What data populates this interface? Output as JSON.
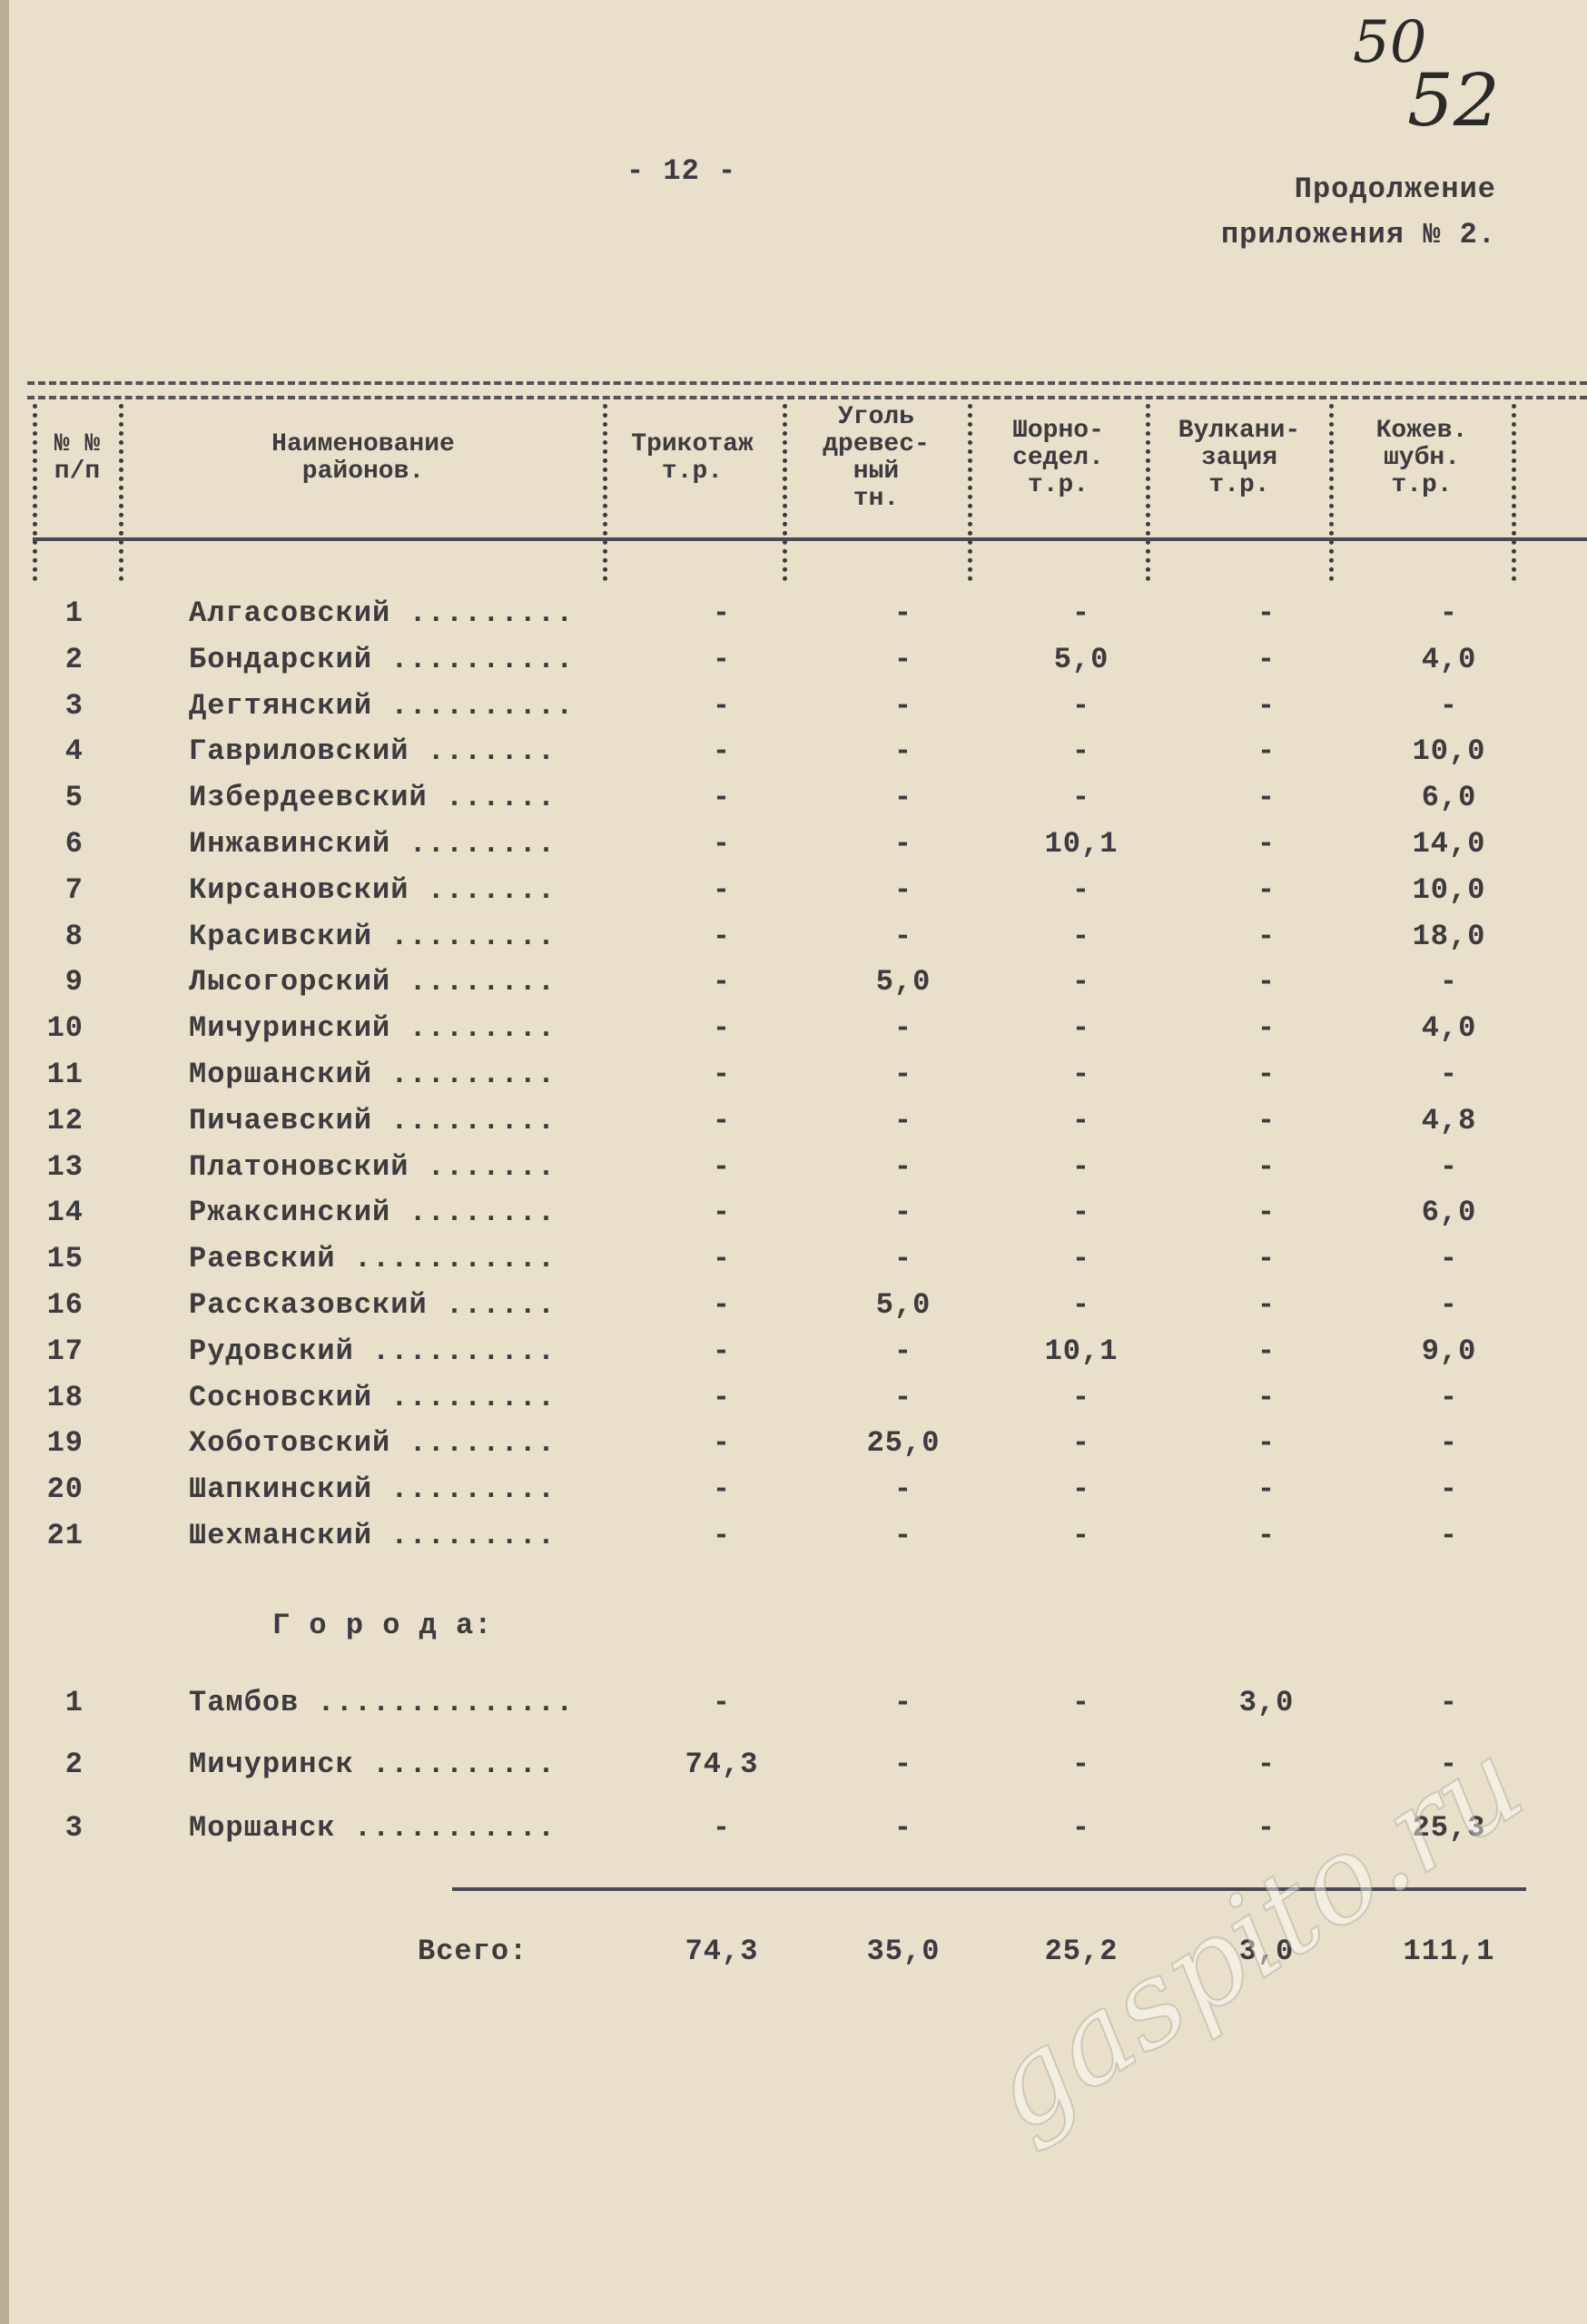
{
  "handwritten": {
    "old_page": "50",
    "new_page": "52"
  },
  "page_number": "- 12 -",
  "continuation": {
    "line1": "Продолжение",
    "line2": "приложения № 2."
  },
  "table": {
    "headers": {
      "num": "№ №\nп/п",
      "name": "Наименование\nрайонов.",
      "trikotazh": "Трикотаж\nт.р.",
      "ugol": "Уголь\nдревес-\nный\nтн.",
      "shorno": "Шорно-\nседел.\nт.р.",
      "vulkan": "Вулкани-\nзация\nт.р.",
      "kozhev": "Кожев.\nшубн.\nт.р."
    },
    "districts": [
      {
        "n": "1",
        "name": "Алгасовский .........",
        "v": [
          "-",
          "-",
          "-",
          "-",
          "-"
        ]
      },
      {
        "n": "2",
        "name": "Бондарский ..........",
        "v": [
          "-",
          "-",
          "5,0",
          "-",
          "4,0"
        ]
      },
      {
        "n": "3",
        "name": "Дегтянский ..........",
        "v": [
          "-",
          "-",
          "-",
          "-",
          "-"
        ]
      },
      {
        "n": "4",
        "name": "Гавриловский .......",
        "v": [
          "-",
          "-",
          "-",
          "-",
          "10,0"
        ]
      },
      {
        "n": "5",
        "name": "Избердеевский ......",
        "v": [
          "-",
          "-",
          "-",
          "-",
          "6,0"
        ]
      },
      {
        "n": "6",
        "name": "Инжавинский ........",
        "v": [
          "-",
          "-",
          "10,1",
          "-",
          "14,0"
        ]
      },
      {
        "n": "7",
        "name": "Кирсановский .......",
        "v": [
          "-",
          "-",
          "-",
          "-",
          "10,0"
        ]
      },
      {
        "n": "8",
        "name": "Красивский .........",
        "v": [
          "-",
          "-",
          "-",
          "-",
          "18,0"
        ]
      },
      {
        "n": "9",
        "name": "Лысогорский ........",
        "v": [
          "-",
          "5,0",
          "-",
          "-",
          "-"
        ]
      },
      {
        "n": "10",
        "name": "Мичуринский ........",
        "v": [
          "-",
          "-",
          "-",
          "-",
          "4,0"
        ]
      },
      {
        "n": "11",
        "name": "Моршанский .........",
        "v": [
          "-",
          "-",
          "-",
          "-",
          "-"
        ]
      },
      {
        "n": "12",
        "name": "Пичаевский .........",
        "v": [
          "-",
          "-",
          "-",
          "-",
          "4,8"
        ]
      },
      {
        "n": "13",
        "name": "Платоновский .......",
        "v": [
          "-",
          "-",
          "-",
          "-",
          "-"
        ]
      },
      {
        "n": "14",
        "name": "Ржаксинский ........",
        "v": [
          "-",
          "-",
          "-",
          "-",
          "6,0"
        ]
      },
      {
        "n": "15",
        "name": "Раевский ...........",
        "v": [
          "-",
          "-",
          "-",
          "-",
          "-"
        ]
      },
      {
        "n": "16",
        "name": "Рассказовский ......",
        "v": [
          "-",
          "5,0",
          "-",
          "-",
          "-"
        ]
      },
      {
        "n": "17",
        "name": "Рудовский ..........",
        "v": [
          "-",
          "-",
          "10,1",
          "-",
          "9,0"
        ]
      },
      {
        "n": "18",
        "name": "Сосновский .........",
        "v": [
          "-",
          "-",
          "-",
          "-",
          "-"
        ]
      },
      {
        "n": "19",
        "name": "Хоботовский ........",
        "v": [
          "-",
          "25,0",
          "-",
          "-",
          "-"
        ]
      },
      {
        "n": "20",
        "name": "Шапкинский .........",
        "v": [
          "-",
          "-",
          "-",
          "-",
          "-"
        ]
      },
      {
        "n": "21",
        "name": "Шехманский .........",
        "v": [
          "-",
          "-",
          "-",
          "-",
          "-"
        ]
      }
    ],
    "cities_heading": "Г о р о д а:",
    "cities": [
      {
        "n": "1",
        "name": "Тамбов ..............",
        "v": [
          "-",
          "-",
          "-",
          "3,0",
          "-"
        ]
      },
      {
        "n": "2",
        "name": "Мичуринск ..........",
        "v": [
          "74,3",
          "-",
          "-",
          "-",
          "-"
        ]
      },
      {
        "n": "3",
        "name": "Моршанск ...........",
        "v": [
          "-",
          "-",
          "-",
          "-",
          "25,3"
        ]
      }
    ],
    "total": {
      "label": "Всего:",
      "v": [
        "74,3",
        "35,0",
        "25,2",
        "3,0",
        "111,1"
      ]
    }
  },
  "watermark": "gaspito.ru"
}
